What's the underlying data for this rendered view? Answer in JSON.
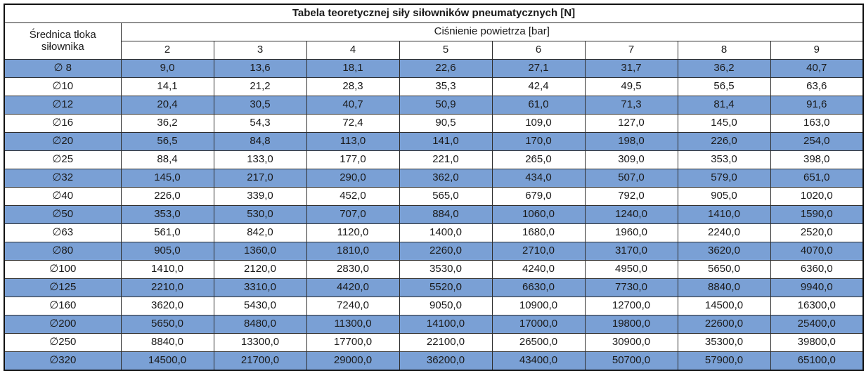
{
  "chart_data": {
    "type": "table",
    "title": "Tabela teoretycznej siły siłowników pneumatycznych [N]",
    "row_header": "Średnica tłoka siłownika",
    "row_header_lines": [
      "Średnica tłoka",
      "siłownika"
    ],
    "column_group_label": "Ciśnienie powietrza [bar]",
    "columns": [
      "2",
      "3",
      "4",
      "5",
      "6",
      "7",
      "8",
      "9"
    ],
    "rows": [
      {
        "label": "∅ 8",
        "values": [
          "9,0",
          "13,6",
          "18,1",
          "22,6",
          "27,1",
          "31,7",
          "36,2",
          "40,7"
        ]
      },
      {
        "label": "∅10",
        "values": [
          "14,1",
          "21,2",
          "28,3",
          "35,3",
          "42,4",
          "49,5",
          "56,5",
          "63,6"
        ]
      },
      {
        "label": "∅12",
        "values": [
          "20,4",
          "30,5",
          "40,7",
          "50,9",
          "61,0",
          "71,3",
          "81,4",
          "91,6"
        ]
      },
      {
        "label": "∅16",
        "values": [
          "36,2",
          "54,3",
          "72,4",
          "90,5",
          "109,0",
          "127,0",
          "145,0",
          "163,0"
        ]
      },
      {
        "label": "∅20",
        "values": [
          "56,5",
          "84,8",
          "113,0",
          "141,0",
          "170,0",
          "198,0",
          "226,0",
          "254,0"
        ]
      },
      {
        "label": "∅25",
        "values": [
          "88,4",
          "133,0",
          "177,0",
          "221,0",
          "265,0",
          "309,0",
          "353,0",
          "398,0"
        ]
      },
      {
        "label": "∅32",
        "values": [
          "145,0",
          "217,0",
          "290,0",
          "362,0",
          "434,0",
          "507,0",
          "579,0",
          "651,0"
        ]
      },
      {
        "label": "∅40",
        "values": [
          "226,0",
          "339,0",
          "452,0",
          "565,0",
          "679,0",
          "792,0",
          "905,0",
          "1020,0"
        ]
      },
      {
        "label": "∅50",
        "values": [
          "353,0",
          "530,0",
          "707,0",
          "884,0",
          "1060,0",
          "1240,0",
          "1410,0",
          "1590,0"
        ]
      },
      {
        "label": "∅63",
        "values": [
          "561,0",
          "842,0",
          "1120,0",
          "1400,0",
          "1680,0",
          "1960,0",
          "2240,0",
          "2520,0"
        ]
      },
      {
        "label": "∅80",
        "values": [
          "905,0",
          "1360,0",
          "1810,0",
          "2260,0",
          "2710,0",
          "3170,0",
          "3620,0",
          "4070,0"
        ]
      },
      {
        "label": "∅100",
        "values": [
          "1410,0",
          "2120,0",
          "2830,0",
          "3530,0",
          "4240,0",
          "4950,0",
          "5650,0",
          "6360,0"
        ]
      },
      {
        "label": "∅125",
        "values": [
          "2210,0",
          "3310,0",
          "4420,0",
          "5520,0",
          "6630,0",
          "7730,0",
          "8840,0",
          "9940,0"
        ]
      },
      {
        "label": "∅160",
        "values": [
          "3620,0",
          "5430,0",
          "7240,0",
          "9050,0",
          "10900,0",
          "12700,0",
          "14500,0",
          "16300,0"
        ]
      },
      {
        "label": "∅200",
        "values": [
          "5650,0",
          "8480,0",
          "11300,0",
          "14100,0",
          "17000,0",
          "19800,0",
          "22600,0",
          "25400,0"
        ]
      },
      {
        "label": "∅250",
        "values": [
          "8840,0",
          "13300,0",
          "17700,0",
          "22100,0",
          "26500,0",
          "30900,0",
          "35300,0",
          "39800,0"
        ]
      },
      {
        "label": "∅320",
        "values": [
          "14500,0",
          "21700,0",
          "29000,0",
          "36200,0",
          "43400,0",
          "50700,0",
          "57900,0",
          "65100,0"
        ]
      }
    ],
    "layout": {
      "zebra_start": "highlighted",
      "grid": "on",
      "text_align": "center"
    }
  },
  "colors": {
    "row_highlight": "#7aa0d5",
    "row_plain": "#ffffff",
    "grid_line": "#2e2e2e",
    "outer_border": "#111111",
    "text": "#1a1a1a",
    "background": "#ffffff"
  }
}
